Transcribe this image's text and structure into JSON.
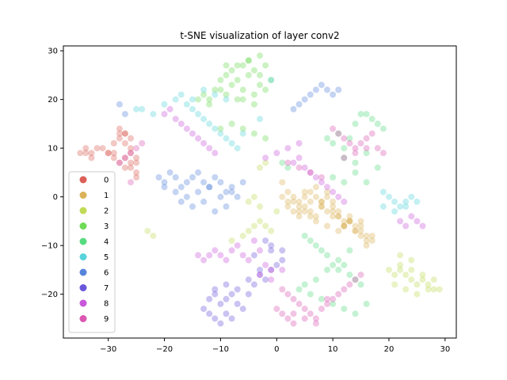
{
  "chart_data": {
    "type": "scatter",
    "title": "t-SNE visualization of layer conv2",
    "xlabel": "",
    "ylabel": "",
    "xlim": [
      -38,
      32
    ],
    "ylim": [
      -29,
      31
    ],
    "x_ticks": [
      -30,
      -20,
      -10,
      0,
      10,
      20,
      30
    ],
    "x_tick_labels": [
      "−30",
      "−20",
      "−10",
      "0",
      "10",
      "20",
      "30"
    ],
    "y_ticks": [
      -20,
      -10,
      0,
      10,
      20,
      30
    ],
    "y_tick_labels": [
      "−20",
      "−10",
      "0",
      "10",
      "20",
      "30"
    ],
    "grid": false,
    "legend_position": "lower-left",
    "point_alpha": 0.35,
    "series": [
      {
        "name": "0",
        "color": "#db5f57",
        "x": [
          -35,
          -34,
          -33,
          -32,
          -31,
          -30,
          -29,
          -28,
          -27,
          -26,
          -29,
          -28,
          -27,
          -26,
          -25,
          -28,
          -27,
          -26,
          -25,
          -29,
          -27,
          -26,
          -25,
          -34,
          -33,
          -30,
          -28,
          -25,
          -27,
          -26
        ],
        "y": [
          9,
          10,
          9,
          10,
          10,
          9,
          11,
          14,
          13,
          12,
          8,
          7,
          6,
          6,
          5,
          12,
          13,
          9,
          7,
          9,
          11,
          10,
          8,
          9,
          8,
          9,
          13,
          4,
          8,
          7
        ]
      },
      {
        "name": "1",
        "color": "#dbb257",
        "x": [
          1,
          2,
          3,
          4,
          5,
          6,
          7,
          8,
          9,
          10,
          11,
          12,
          13,
          14,
          15,
          16,
          17,
          3,
          4,
          5,
          6,
          7,
          8,
          9,
          10,
          11,
          12,
          13,
          14,
          15,
          16,
          2,
          4,
          6,
          8,
          10,
          12,
          14,
          16,
          5,
          7,
          9,
          11,
          13,
          15,
          1,
          3,
          5,
          7,
          9,
          11,
          13,
          15,
          17,
          2,
          4,
          6,
          8,
          10,
          12
        ],
        "y": [
          0,
          1,
          0,
          -1,
          0,
          1,
          0,
          -1,
          0,
          -2,
          -4,
          -5,
          -5,
          -6,
          -7,
          -8,
          -9,
          -3,
          -4,
          -2,
          -3,
          -4,
          -2,
          -3,
          -1,
          -4,
          -6,
          -5,
          -7,
          -8,
          -9,
          -2,
          -3,
          -1,
          -2,
          -4,
          -6,
          -7,
          -10,
          1,
          2,
          1,
          -3,
          -5,
          -6,
          3,
          -1,
          -3,
          -5,
          -6,
          -7,
          -4,
          -5,
          -8,
          -1,
          -2,
          -4,
          -1,
          -3,
          -6
        ]
      },
      {
        "name": "2",
        "color": "#c1db57",
        "x": [
          -23,
          -22,
          -8,
          -6,
          -5,
          -4,
          -3,
          -2,
          -1,
          0,
          -3,
          -2,
          -4,
          20,
          21,
          22,
          23,
          24,
          25,
          26,
          27,
          28,
          29,
          21,
          23,
          25,
          27,
          22,
          24,
          26,
          28,
          22,
          24,
          -5,
          -3
        ],
        "y": [
          -7,
          -8,
          -9,
          -8,
          -7,
          -6,
          -5,
          -6,
          -7,
          -3,
          6,
          7,
          0,
          -15,
          -16,
          -15,
          -16,
          -17,
          -18,
          -17,
          -18,
          -19,
          -19,
          -18,
          -19,
          -20,
          -19,
          -14,
          -15,
          -16,
          -17,
          -12,
          -13,
          -1,
          -2
        ]
      },
      {
        "name": "3",
        "color": "#6edb57",
        "x": [
          -10,
          -9,
          -8,
          -7,
          -6,
          -5,
          -4,
          -3,
          -2,
          -1,
          -10,
          -9,
          -8,
          -7,
          -6,
          -5,
          -4,
          -3,
          -2,
          -9,
          -7,
          -5,
          -3,
          -6,
          -4,
          -11,
          -12,
          -13,
          -10,
          -8,
          -6,
          -4,
          -2,
          -14,
          -12
        ],
        "y": [
          24,
          25,
          26,
          24,
          27,
          28,
          26,
          25,
          27,
          24,
          22,
          21,
          23,
          20,
          22,
          25,
          21,
          23,
          22,
          27,
          27,
          28,
          29,
          20,
          19,
          22,
          20,
          21,
          14,
          15,
          14,
          13,
          12,
          20,
          19
        ]
      },
      {
        "name": "4",
        "color": "#57db80",
        "x": [
          9,
          10,
          11,
          12,
          13,
          14,
          15,
          16,
          17,
          18,
          19,
          12,
          14,
          16,
          18,
          10,
          12,
          14,
          16,
          5,
          6,
          7,
          8,
          9,
          10,
          11,
          12,
          13,
          14,
          15,
          4,
          6,
          8,
          10,
          12,
          14,
          16,
          5,
          7,
          9,
          11,
          13,
          2,
          1
        ],
        "y": [
          12,
          11,
          13,
          10,
          12,
          15,
          17,
          17,
          16,
          15,
          14,
          8,
          7,
          9,
          6,
          4,
          3,
          5,
          3,
          -8,
          -9,
          -10,
          -11,
          -12,
          -14,
          -15,
          -14,
          -16,
          -17,
          -18,
          -19,
          -20,
          -21,
          -22,
          -23,
          -24,
          -22,
          -18,
          -17,
          -15,
          -13,
          -11,
          6,
          7
        ]
      },
      {
        "name": "5",
        "color": "#57d3db",
        "x": [
          -25,
          -24,
          -22,
          -20,
          -18,
          -16,
          -15,
          -14,
          -13,
          -12,
          -11,
          -10,
          -9,
          -8,
          -7,
          -17,
          -15,
          -13,
          -11,
          -9,
          19,
          20,
          21,
          22,
          23,
          24,
          25,
          19,
          21,
          23,
          -3,
          -1,
          -6
        ],
        "y": [
          18,
          18,
          17,
          19,
          20,
          19,
          18,
          17,
          16,
          15,
          14,
          13,
          12,
          11,
          10,
          21,
          20,
          22,
          21,
          20,
          1,
          0,
          -1,
          -2,
          -1,
          0,
          -1,
          -2,
          -3,
          -2,
          16,
          24,
          13
        ]
      },
      {
        "name": "6",
        "color": "#5784db",
        "x": [
          -21,
          -20,
          -19,
          -18,
          -17,
          -16,
          -15,
          -14,
          -13,
          -12,
          -11,
          -10,
          -9,
          -8,
          -7,
          -6,
          -20,
          -18,
          -16,
          -14,
          -12,
          -10,
          -8,
          -17,
          -15,
          -13,
          -11,
          -9,
          -28,
          -27,
          6,
          7,
          8,
          9,
          10,
          11,
          3,
          4,
          5
        ],
        "y": [
          4,
          3,
          5,
          4,
          2,
          3,
          4,
          5,
          3,
          2,
          4,
          3,
          1,
          2,
          0,
          3,
          2,
          1,
          0,
          1,
          2,
          0,
          1,
          -1,
          -2,
          -1,
          -3,
          -2,
          19,
          17,
          21,
          22,
          23,
          22,
          21,
          22,
          18,
          19,
          20
        ]
      },
      {
        "name": "7",
        "color": "#6a57db",
        "x": [
          -12,
          -11,
          -10,
          -9,
          -8,
          -13,
          -12,
          -11,
          -10,
          -9,
          -8,
          -7,
          -6,
          -5,
          -4,
          -3,
          -2,
          -1,
          0,
          1,
          -7,
          -5,
          -3,
          -1,
          -4,
          -2,
          -11,
          -9,
          -1,
          1
        ],
        "y": [
          -21,
          -20,
          -22,
          -21,
          -20,
          -23,
          -24,
          -25,
          -26,
          -24,
          -25,
          -22,
          -23,
          -20,
          -18,
          -16,
          -17,
          -15,
          -14,
          -13,
          -19,
          -17,
          -15,
          -11,
          -12,
          -9,
          -19,
          -18,
          -10,
          -11
        ]
      },
      {
        "name": "8",
        "color": "#c957db",
        "x": [
          -20,
          -19,
          -18,
          -17,
          -16,
          -15,
          -14,
          -13,
          -12,
          -11,
          -10,
          -9,
          -8,
          -7,
          -6,
          -5,
          -4,
          -3,
          -2,
          -1,
          3,
          4,
          5,
          6,
          7,
          8,
          9,
          10,
          11,
          12,
          22,
          23,
          24,
          25,
          26,
          -14,
          -13,
          -12,
          -11,
          -2,
          0,
          2,
          4,
          -3,
          -1,
          1
        ],
        "y": [
          17,
          18,
          16,
          15,
          14,
          13,
          12,
          11,
          10,
          9,
          -12,
          -13,
          -11,
          -10,
          -12,
          -13,
          -9,
          -11,
          -14,
          -15,
          7,
          8,
          6,
          5,
          4,
          3,
          2,
          1,
          0,
          -1,
          -5,
          -6,
          -4,
          -5,
          -6,
          -12,
          -13,
          -12,
          -11,
          8,
          9,
          10,
          11,
          -16,
          -17,
          -15
        ]
      },
      {
        "name": "9",
        "color": "#db57b2",
        "x": [
          -28,
          -27,
          -26,
          -25,
          -24,
          10,
          11,
          12,
          13,
          14,
          15,
          16,
          17,
          18,
          19,
          1,
          2,
          3,
          4,
          5,
          6,
          7,
          8,
          9,
          10,
          11,
          12,
          13,
          14,
          15,
          -26,
          2,
          4,
          6,
          8,
          12,
          14,
          16,
          3,
          5,
          7,
          9,
          0,
          1,
          2,
          3
        ],
        "y": [
          7,
          8,
          9,
          10,
          11,
          14,
          13,
          12,
          11,
          10,
          11,
          12,
          13,
          10,
          9,
          -19,
          -20,
          -21,
          -22,
          -23,
          -24,
          -25,
          -23,
          -22,
          -21,
          -20,
          -19,
          -18,
          -17,
          -16,
          3,
          7,
          6,
          5,
          4,
          8,
          9,
          10,
          -24,
          -25,
          -26,
          -21,
          -23,
          -24,
          -25,
          -26
        ]
      }
    ]
  }
}
